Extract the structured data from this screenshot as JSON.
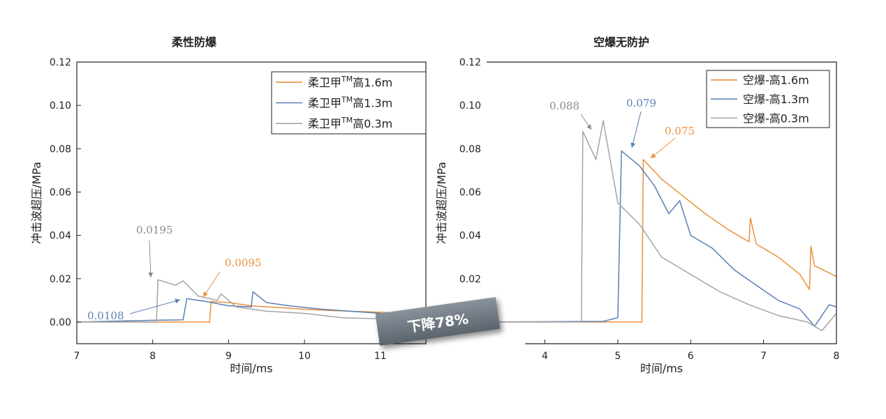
{
  "badge": "下降78%",
  "chart_data": [
    {
      "type": "line",
      "title": "柔性防爆",
      "xlabel": "时间/ms",
      "ylabel": "冲击波超压/MPa",
      "xlim": [
        7,
        11.6
      ],
      "ylim": [
        -0.01,
        0.12
      ],
      "xticks": [
        "7",
        "8",
        "9",
        "10",
        "11"
      ],
      "yticks": [
        "0.00",
        "0.02",
        "0.04",
        "0.06",
        "0.08",
        "0.10",
        "0.12"
      ],
      "legend_position": "top-right",
      "legend": [
        {
          "prefix": "柔卫甲",
          "sup": "TM",
          "suffix": "高1.6m"
        },
        {
          "prefix": "柔卫甲",
          "sup": "TM",
          "suffix": "高1.3m"
        },
        {
          "prefix": "柔卫甲",
          "sup": "TM",
          "suffix": "高0.3m"
        }
      ],
      "series": [
        {
          "color": "#e8913a",
          "points": [
            [
              7,
              0
            ],
            [
              8.75,
              0
            ],
            [
              8.77,
              0.0095
            ],
            [
              9.0,
              0.009
            ],
            [
              9.3,
              0.0075
            ],
            [
              9.6,
              0.0068
            ],
            [
              9.9,
              0.0062
            ],
            [
              10.2,
              0.0055
            ],
            [
              10.6,
              0.005
            ],
            [
              11.0,
              0.0045
            ],
            [
              11.3,
              0.004
            ],
            [
              11.6,
              0.0035
            ]
          ]
        },
        {
          "color": "#5a7fb5",
          "points": [
            [
              7,
              0
            ],
            [
              8.0,
              0.0008
            ],
            [
              8.4,
              0.001
            ],
            [
              8.45,
              0.0108
            ],
            [
              8.7,
              0.0095
            ],
            [
              9.0,
              0.0075
            ],
            [
              9.3,
              0.007
            ],
            [
              9.32,
              0.014
            ],
            [
              9.5,
              0.009
            ],
            [
              9.8,
              0.0075
            ],
            [
              10.2,
              0.006
            ],
            [
              10.6,
              0.005
            ],
            [
              11.0,
              0.004
            ],
            [
              11.6,
              0.0035
            ]
          ]
        },
        {
          "color": "#a4a4a4",
          "points": [
            [
              7,
              0
            ],
            [
              8.05,
              0
            ],
            [
              8.07,
              0.0195
            ],
            [
              8.3,
              0.017
            ],
            [
              8.4,
              0.019
            ],
            [
              8.6,
              0.012
            ],
            [
              8.85,
              0.01
            ],
            [
              8.9,
              0.013
            ],
            [
              9.1,
              0.007
            ],
            [
              9.5,
              0.005
            ],
            [
              10.0,
              0.004
            ],
            [
              10.5,
              0.002
            ],
            [
              11.0,
              0.0015
            ],
            [
              11.6,
              0.0012
            ]
          ]
        }
      ],
      "annotations": [
        {
          "text": "0.0195",
          "color": "#8a8a8a"
        },
        {
          "text": "0.0095",
          "color": "#e8913a"
        },
        {
          "text": "0.0108",
          "color": "#5a7fb5"
        }
      ]
    },
    {
      "type": "line",
      "title": "空爆无防护",
      "xlabel": "时间/ms",
      "ylabel": "冲击波超压/MPa",
      "xlim": [
        3.2,
        8
      ],
      "ylim": [
        -0.01,
        0.12
      ],
      "xticks": [
        "4",
        "5",
        "6",
        "7",
        "8"
      ],
      "yticks": [
        "0.00",
        "0.02",
        "0.04",
        "0.06",
        "0.08",
        "0.10",
        "0.12"
      ],
      "legend_position": "top-right",
      "legend": [
        {
          "prefix": "空爆-高1.6m",
          "sup": "",
          "suffix": ""
        },
        {
          "prefix": "空爆-高1.3m",
          "sup": "",
          "suffix": ""
        },
        {
          "prefix": "空爆-高0.3m",
          "sup": "",
          "suffix": ""
        }
      ],
      "series": [
        {
          "color": "#e8913a",
          "points": [
            [
              3.2,
              0
            ],
            [
              5.33,
              0
            ],
            [
              5.35,
              0.075
            ],
            [
              5.6,
              0.066
            ],
            [
              5.9,
              0.058
            ],
            [
              6.2,
              0.05
            ],
            [
              6.5,
              0.043
            ],
            [
              6.8,
              0.037
            ],
            [
              6.82,
              0.048
            ],
            [
              6.9,
              0.036
            ],
            [
              7.2,
              0.03
            ],
            [
              7.5,
              0.022
            ],
            [
              7.63,
              0.015
            ],
            [
              7.65,
              0.035
            ],
            [
              7.7,
              0.026
            ],
            [
              8.0,
              0.021
            ]
          ]
        },
        {
          "color": "#5a7fb5",
          "points": [
            [
              3.2,
              0
            ],
            [
              4.8,
              0.0003
            ],
            [
              5.0,
              0.002
            ],
            [
              5.05,
              0.079
            ],
            [
              5.3,
              0.072
            ],
            [
              5.5,
              0.063
            ],
            [
              5.7,
              0.05
            ],
            [
              5.85,
              0.056
            ],
            [
              6.0,
              0.04
            ],
            [
              6.3,
              0.034
            ],
            [
              6.6,
              0.024
            ],
            [
              6.9,
              0.017
            ],
            [
              7.2,
              0.01
            ],
            [
              7.5,
              0.006
            ],
            [
              7.7,
              -0.002
            ],
            [
              7.9,
              0.008
            ],
            [
              8.0,
              0.007
            ]
          ]
        },
        {
          "color": "#a4a4a4",
          "points": [
            [
              3.2,
              0
            ],
            [
              4.5,
              0
            ],
            [
              4.52,
              0.088
            ],
            [
              4.7,
              0.075
            ],
            [
              4.8,
              0.093
            ],
            [
              5.0,
              0.055
            ],
            [
              5.3,
              0.045
            ],
            [
              5.6,
              0.03
            ],
            [
              6.0,
              0.022
            ],
            [
              6.4,
              0.014
            ],
            [
              6.8,
              0.008
            ],
            [
              7.2,
              0.003
            ],
            [
              7.6,
              0.0
            ],
            [
              7.8,
              -0.004
            ],
            [
              8.0,
              0.004
            ]
          ]
        }
      ],
      "annotations": [
        {
          "text": "0.088",
          "color": "#8a8a8a"
        },
        {
          "text": "0.079",
          "color": "#5a7fb5"
        },
        {
          "text": "0.075",
          "color": "#e8913a"
        }
      ]
    }
  ]
}
